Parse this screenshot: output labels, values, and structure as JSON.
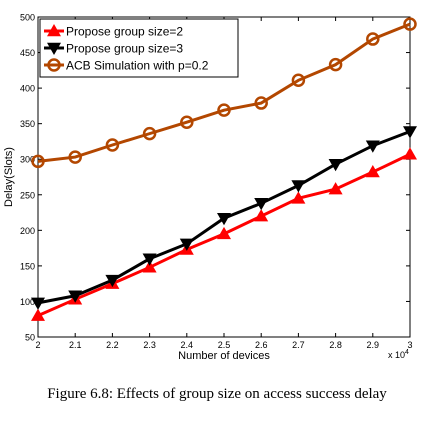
{
  "chart_data": {
    "type": "line",
    "title": "",
    "xlabel": "Number of devices",
    "ylabel": "Delay(Slots)",
    "x_multiplier": "x 10^4",
    "x": [
      2,
      2.1,
      2.2,
      2.3,
      2.4,
      2.5,
      2.6,
      2.7,
      2.8,
      2.9,
      3
    ],
    "x_ticks": [
      "2",
      "2.1",
      "2.2",
      "2.3",
      "2.4",
      "2.5",
      "2.6",
      "2.7",
      "2.8",
      "2.9",
      "3"
    ],
    "y_ticks": [
      "50",
      "100",
      "150",
      "200",
      "250",
      "300",
      "350",
      "400",
      "450",
      "500"
    ],
    "xlim": [
      2,
      3
    ],
    "ylim": [
      50,
      500
    ],
    "grid": false,
    "legend_position": "top-left",
    "series": [
      {
        "name": "Propose group size=2",
        "color": "#ff0000",
        "marker": "triangle-up",
        "values": [
          80,
          103,
          125,
          148,
          173,
          195,
          220,
          245,
          258,
          282,
          307
        ]
      },
      {
        "name": "Propose group size=3",
        "color": "#000000",
        "marker": "triangle-down",
        "values": [
          98,
          108,
          130,
          160,
          181,
          217,
          238,
          263,
          293,
          319,
          339
        ]
      },
      {
        "name": "ACB Simulation with p=0.2",
        "color": "#b34700",
        "marker": "circle",
        "values": [
          297,
          303,
          320,
          336,
          352,
          369,
          379,
          411,
          433,
          469,
          490
        ]
      }
    ]
  },
  "caption": "Figure 6.8: Effects of group size on access success delay"
}
